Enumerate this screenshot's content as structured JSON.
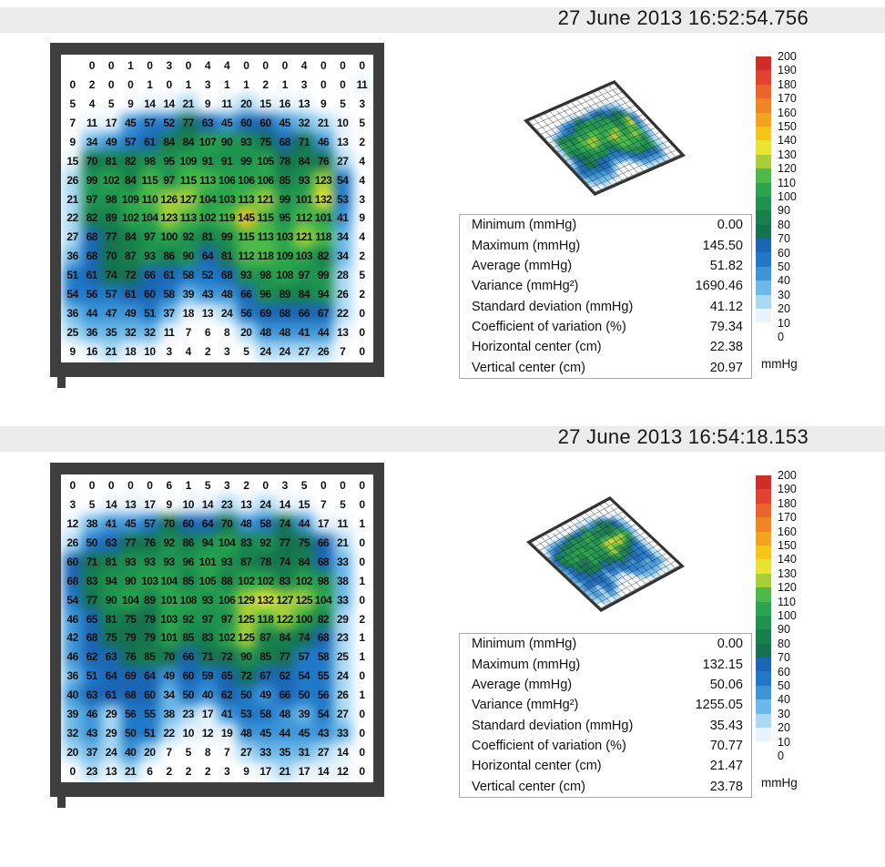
{
  "colormap": {
    "band_size": 10,
    "colors": [
      "#ffffff",
      "#e8f3fb",
      "#aad9f3",
      "#6cb8e8",
      "#3d95d8",
      "#2079c8",
      "#1b66b4",
      "#15724e",
      "#17814d",
      "#1e9350",
      "#2aa54d",
      "#4cb948",
      "#a7cf38",
      "#e8e431",
      "#f6c615",
      "#f4a41c",
      "#f08526",
      "#ea642b",
      "#e2422e",
      "#d02c28"
    ]
  },
  "colorbar": {
    "ticks": [
      "200",
      "190",
      "180",
      "170",
      "160",
      "150",
      "140",
      "130",
      "120",
      "110",
      "100",
      "90",
      "80",
      "70",
      "60",
      "50",
      "40",
      "30",
      "20",
      "10",
      "0"
    ],
    "unit": "mmHg"
  },
  "chart_data": [
    {
      "type": "heatmap",
      "timestamp": "27 June 2013 16:52:54.756",
      "unit": "mmHg",
      "value_range": [
        0,
        200
      ],
      "grid": [
        [
          "",
          0,
          0,
          1,
          0,
          3,
          0,
          4,
          4,
          0,
          0,
          0,
          4,
          0,
          0,
          0
        ],
        [
          0,
          2,
          0,
          0,
          1,
          0,
          1,
          3,
          1,
          1,
          2,
          1,
          3,
          0,
          0,
          11
        ],
        [
          5,
          4,
          5,
          9,
          14,
          14,
          21,
          9,
          11,
          20,
          15,
          16,
          13,
          9,
          5,
          3
        ],
        [
          7,
          11,
          17,
          45,
          57,
          52,
          77,
          63,
          45,
          60,
          60,
          45,
          32,
          21,
          10,
          5
        ],
        [
          9,
          34,
          49,
          57,
          61,
          84,
          84,
          107,
          90,
          93,
          75,
          68,
          71,
          46,
          13,
          2
        ],
        [
          15,
          70,
          81,
          82,
          98,
          95,
          109,
          91,
          91,
          99,
          105,
          78,
          84,
          76,
          27,
          4
        ],
        [
          26,
          99,
          102,
          84,
          115,
          97,
          115,
          113,
          106,
          106,
          106,
          85,
          93,
          123,
          54,
          4
        ],
        [
          21,
          97,
          98,
          109,
          110,
          126,
          127,
          104,
          103,
          113,
          121,
          99,
          101,
          132,
          53,
          3
        ],
        [
          22,
          82,
          89,
          102,
          104,
          123,
          113,
          102,
          119,
          145,
          115,
          95,
          112,
          101,
          41,
          9
        ],
        [
          27,
          68,
          77,
          84,
          97,
          100,
          92,
          81,
          99,
          115,
          113,
          103,
          121,
          118,
          34,
          4
        ],
        [
          36,
          68,
          70,
          87,
          93,
          86,
          90,
          64,
          81,
          112,
          118,
          109,
          103,
          82,
          34,
          2
        ],
        [
          51,
          61,
          74,
          72,
          66,
          61,
          58,
          52,
          68,
          93,
          98,
          108,
          97,
          99,
          28,
          5
        ],
        [
          54,
          56,
          57,
          61,
          60,
          58,
          39,
          43,
          48,
          66,
          96,
          89,
          84,
          94,
          26,
          2
        ],
        [
          36,
          44,
          47,
          49,
          51,
          37,
          18,
          13,
          24,
          56,
          69,
          68,
          66,
          67,
          22,
          0
        ],
        [
          25,
          36,
          35,
          32,
          32,
          11,
          7,
          6,
          8,
          20,
          48,
          48,
          41,
          44,
          13,
          0
        ],
        [
          9,
          16,
          21,
          18,
          10,
          3,
          4,
          2,
          3,
          5,
          24,
          24,
          27,
          26,
          7,
          0
        ]
      ],
      "stats": [
        {
          "label": "Minimum (mmHg)",
          "value": "0.00"
        },
        {
          "label": "Maximum (mmHg)",
          "value": "145.50"
        },
        {
          "label": "Average (mmHg)",
          "value": "51.82"
        },
        {
          "label": "Variance (mmHg²)",
          "value": "1690.46"
        },
        {
          "label": "Standard deviation (mmHg)",
          "value": "41.12"
        },
        {
          "label": "Coefficient of variation (%)",
          "value": "79.34"
        },
        {
          "label": "Horizontal center (cm)",
          "value": "22.38"
        },
        {
          "label": "Vertical center (cm)",
          "value": "20.97"
        }
      ]
    },
    {
      "type": "heatmap",
      "timestamp": "27 June 2013 16:54:18.153",
      "unit": "mmHg",
      "value_range": [
        0,
        200
      ],
      "grid": [
        [
          0,
          0,
          0,
          0,
          0,
          6,
          1,
          5,
          3,
          2,
          0,
          3,
          5,
          0,
          0,
          0
        ],
        [
          3,
          5,
          14,
          13,
          17,
          9,
          10,
          14,
          23,
          13,
          24,
          14,
          15,
          7,
          5,
          0
        ],
        [
          12,
          38,
          41,
          45,
          57,
          70,
          60,
          64,
          70,
          48,
          58,
          74,
          44,
          17,
          11,
          1
        ],
        [
          26,
          50,
          63,
          77,
          76,
          92,
          86,
          94,
          104,
          83,
          92,
          77,
          75,
          66,
          21,
          0
        ],
        [
          60,
          71,
          81,
          93,
          93,
          93,
          96,
          101,
          93,
          87,
          78,
          74,
          84,
          68,
          33,
          0
        ],
        [
          68,
          83,
          94,
          90,
          103,
          104,
          85,
          105,
          88,
          102,
          102,
          83,
          102,
          98,
          38,
          1
        ],
        [
          54,
          77,
          90,
          104,
          89,
          101,
          108,
          93,
          106,
          129,
          132,
          127,
          125,
          104,
          33,
          0
        ],
        [
          46,
          65,
          81,
          75,
          79,
          103,
          92,
          97,
          97,
          125,
          118,
          122,
          100,
          82,
          29,
          2
        ],
        [
          42,
          68,
          75,
          79,
          79,
          101,
          85,
          83,
          102,
          125,
          87,
          84,
          74,
          68,
          23,
          1
        ],
        [
          46,
          62,
          63,
          76,
          85,
          70,
          66,
          71,
          72,
          90,
          85,
          77,
          57,
          58,
          25,
          1
        ],
        [
          36,
          51,
          64,
          69,
          64,
          49,
          60,
          59,
          65,
          72,
          67,
          62,
          54,
          55,
          24,
          0
        ],
        [
          40,
          63,
          61,
          68,
          60,
          34,
          50,
          40,
          62,
          50,
          49,
          66,
          50,
          56,
          26,
          1
        ],
        [
          39,
          46,
          29,
          56,
          55,
          38,
          23,
          17,
          41,
          53,
          58,
          48,
          39,
          54,
          27,
          0
        ],
        [
          32,
          43,
          29,
          50,
          51,
          22,
          10,
          12,
          19,
          48,
          45,
          44,
          45,
          43,
          33,
          0
        ],
        [
          20,
          37,
          24,
          40,
          20,
          7,
          5,
          8,
          7,
          27,
          33,
          35,
          31,
          27,
          14,
          0
        ],
        [
          0,
          23,
          13,
          21,
          6,
          2,
          2,
          2,
          3,
          9,
          17,
          21,
          17,
          14,
          12,
          0
        ]
      ],
      "stats": [
        {
          "label": "Minimum (mmHg)",
          "value": "0.00"
        },
        {
          "label": "Maximum (mmHg)",
          "value": "132.15"
        },
        {
          "label": "Average (mmHg)",
          "value": "50.06"
        },
        {
          "label": "Variance (mmHg²)",
          "value": "1255.05"
        },
        {
          "label": "Standard deviation (mmHg)",
          "value": "35.43"
        },
        {
          "label": "Coefficient of variation (%)",
          "value": "70.77"
        },
        {
          "label": "Horizontal center (cm)",
          "value": "21.47"
        },
        {
          "label": "Vertical center (cm)",
          "value": "23.78"
        }
      ]
    }
  ]
}
